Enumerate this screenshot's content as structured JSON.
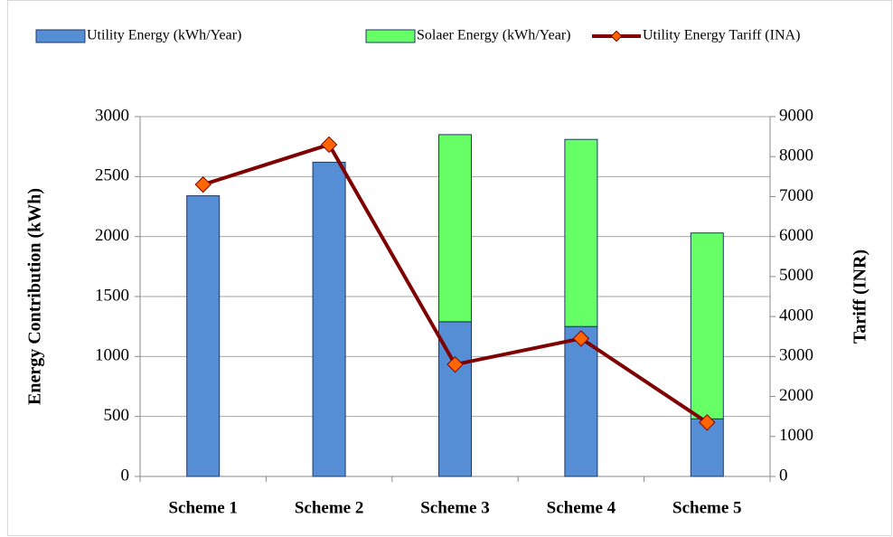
{
  "chart_data": {
    "type": "bar",
    "stacked": true,
    "categories": [
      "Scheme 1",
      "Scheme 2",
      "Scheme 3",
      "Scheme 4",
      "Scheme 5"
    ],
    "series": [
      {
        "name": "Utility  Energy (kWh/Year)",
        "color": "#558ed5",
        "type": "bar",
        "values": [
          2340,
          2620,
          1290,
          1250,
          480
        ]
      },
      {
        "name": "Solaer Energy (kWh/Year)",
        "color": "#66ff66",
        "type": "bar",
        "values": [
          0,
          0,
          1560,
          1560,
          1550
        ]
      },
      {
        "name": "Utility  Energy Tariff (INA)",
        "color": "#7f0000",
        "marker_color": "#ff6600",
        "type": "line",
        "axis": "y2",
        "values": [
          7300,
          8300,
          2800,
          3450,
          1350
        ]
      }
    ],
    "y_label": "Energy Contribution (kWh)",
    "y2_label": "Tariff  (INR)",
    "ylim": [
      0,
      3000
    ],
    "yticks": [
      0,
      500,
      1000,
      1500,
      2000,
      2500,
      3000
    ],
    "y2lim": [
      0,
      9000
    ],
    "y2ticks": [
      0,
      1000,
      2000,
      3000,
      4000,
      5000,
      6000,
      7000,
      8000,
      9000
    ],
    "grid": true,
    "legend": "top"
  }
}
